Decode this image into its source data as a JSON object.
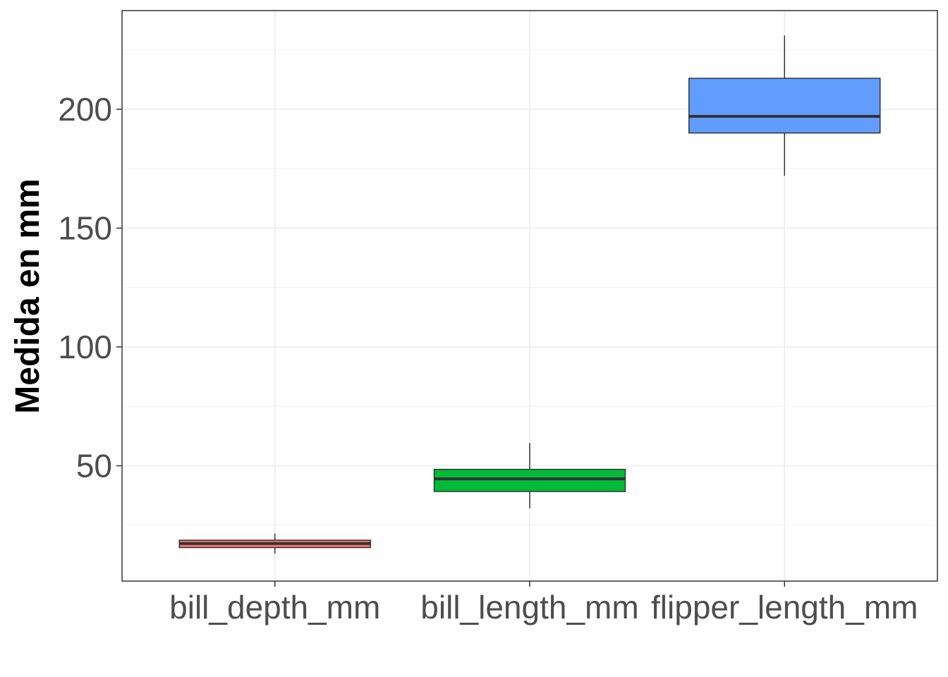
{
  "chart_data": {
    "type": "boxplot",
    "title": "",
    "xlabel": "",
    "ylabel": "Medida en mm",
    "categories": [
      "bill_depth_mm",
      "bill_length_mm",
      "flipper_length_mm"
    ],
    "boxes": [
      {
        "name": "bill_depth_mm",
        "whisker_low": 13.1,
        "q1": 15.6,
        "median": 17.3,
        "q3": 18.7,
        "whisker_high": 21.5,
        "fill": "#F8766D"
      },
      {
        "name": "bill_length_mm",
        "whisker_low": 32.1,
        "q1": 39.2,
        "median": 44.5,
        "q3": 48.5,
        "whisker_high": 59.6,
        "fill": "#00BA38"
      },
      {
        "name": "flipper_length_mm",
        "whisker_low": 172,
        "q1": 190,
        "median": 197,
        "q3": 213,
        "whisker_high": 231,
        "fill": "#619CFF"
      }
    ],
    "ylim": [
      1.5,
      241.5
    ],
    "yticks": [
      50,
      100,
      150,
      200
    ],
    "ytick_labels": [
      "50",
      "100",
      "150",
      "200"
    ],
    "grid": true,
    "legend": "none"
  }
}
